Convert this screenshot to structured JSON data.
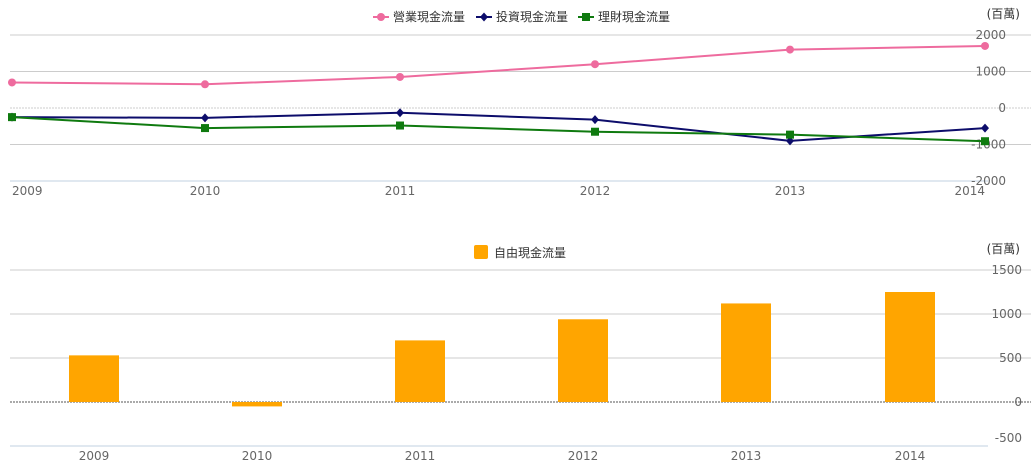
{
  "chart_data": [
    {
      "type": "line",
      "title": "",
      "unit_label": "(百萬)",
      "categories": [
        "2009",
        "2010",
        "2011",
        "2012",
        "2013",
        "2014"
      ],
      "ylim": [
        -2000,
        2000
      ],
      "yticks": [
        "2000",
        "1000",
        "0",
        "-1000",
        "-2000"
      ],
      "grid": true,
      "legend_position": "top",
      "series": [
        {
          "name": "營業現金流量",
          "color": "#ee6b9e",
          "marker": "circle",
          "values": [
            700,
            650,
            850,
            1200,
            1600,
            1700
          ]
        },
        {
          "name": "投資現金流量",
          "color": "#0d0d6b",
          "marker": "diamond",
          "values": [
            -250,
            -270,
            -130,
            -320,
            -900,
            -550
          ]
        },
        {
          "name": "理財現金流量",
          "color": "#0f7a0f",
          "marker": "square",
          "values": [
            -250,
            -550,
            -480,
            -650,
            -730,
            -910
          ]
        }
      ]
    },
    {
      "type": "bar",
      "title": "",
      "unit_label": "(百萬)",
      "categories": [
        "2009",
        "2010",
        "2011",
        "2012",
        "2013",
        "2014"
      ],
      "ylim": [
        -500,
        1500
      ],
      "yticks": [
        "1500",
        "1000",
        "500",
        "0",
        "-500"
      ],
      "grid": true,
      "legend_position": "top",
      "series": [
        {
          "name": "自由現金流量",
          "color": "#ffa500",
          "values": [
            530,
            -50,
            700,
            940,
            1120,
            1250
          ]
        }
      ]
    }
  ]
}
